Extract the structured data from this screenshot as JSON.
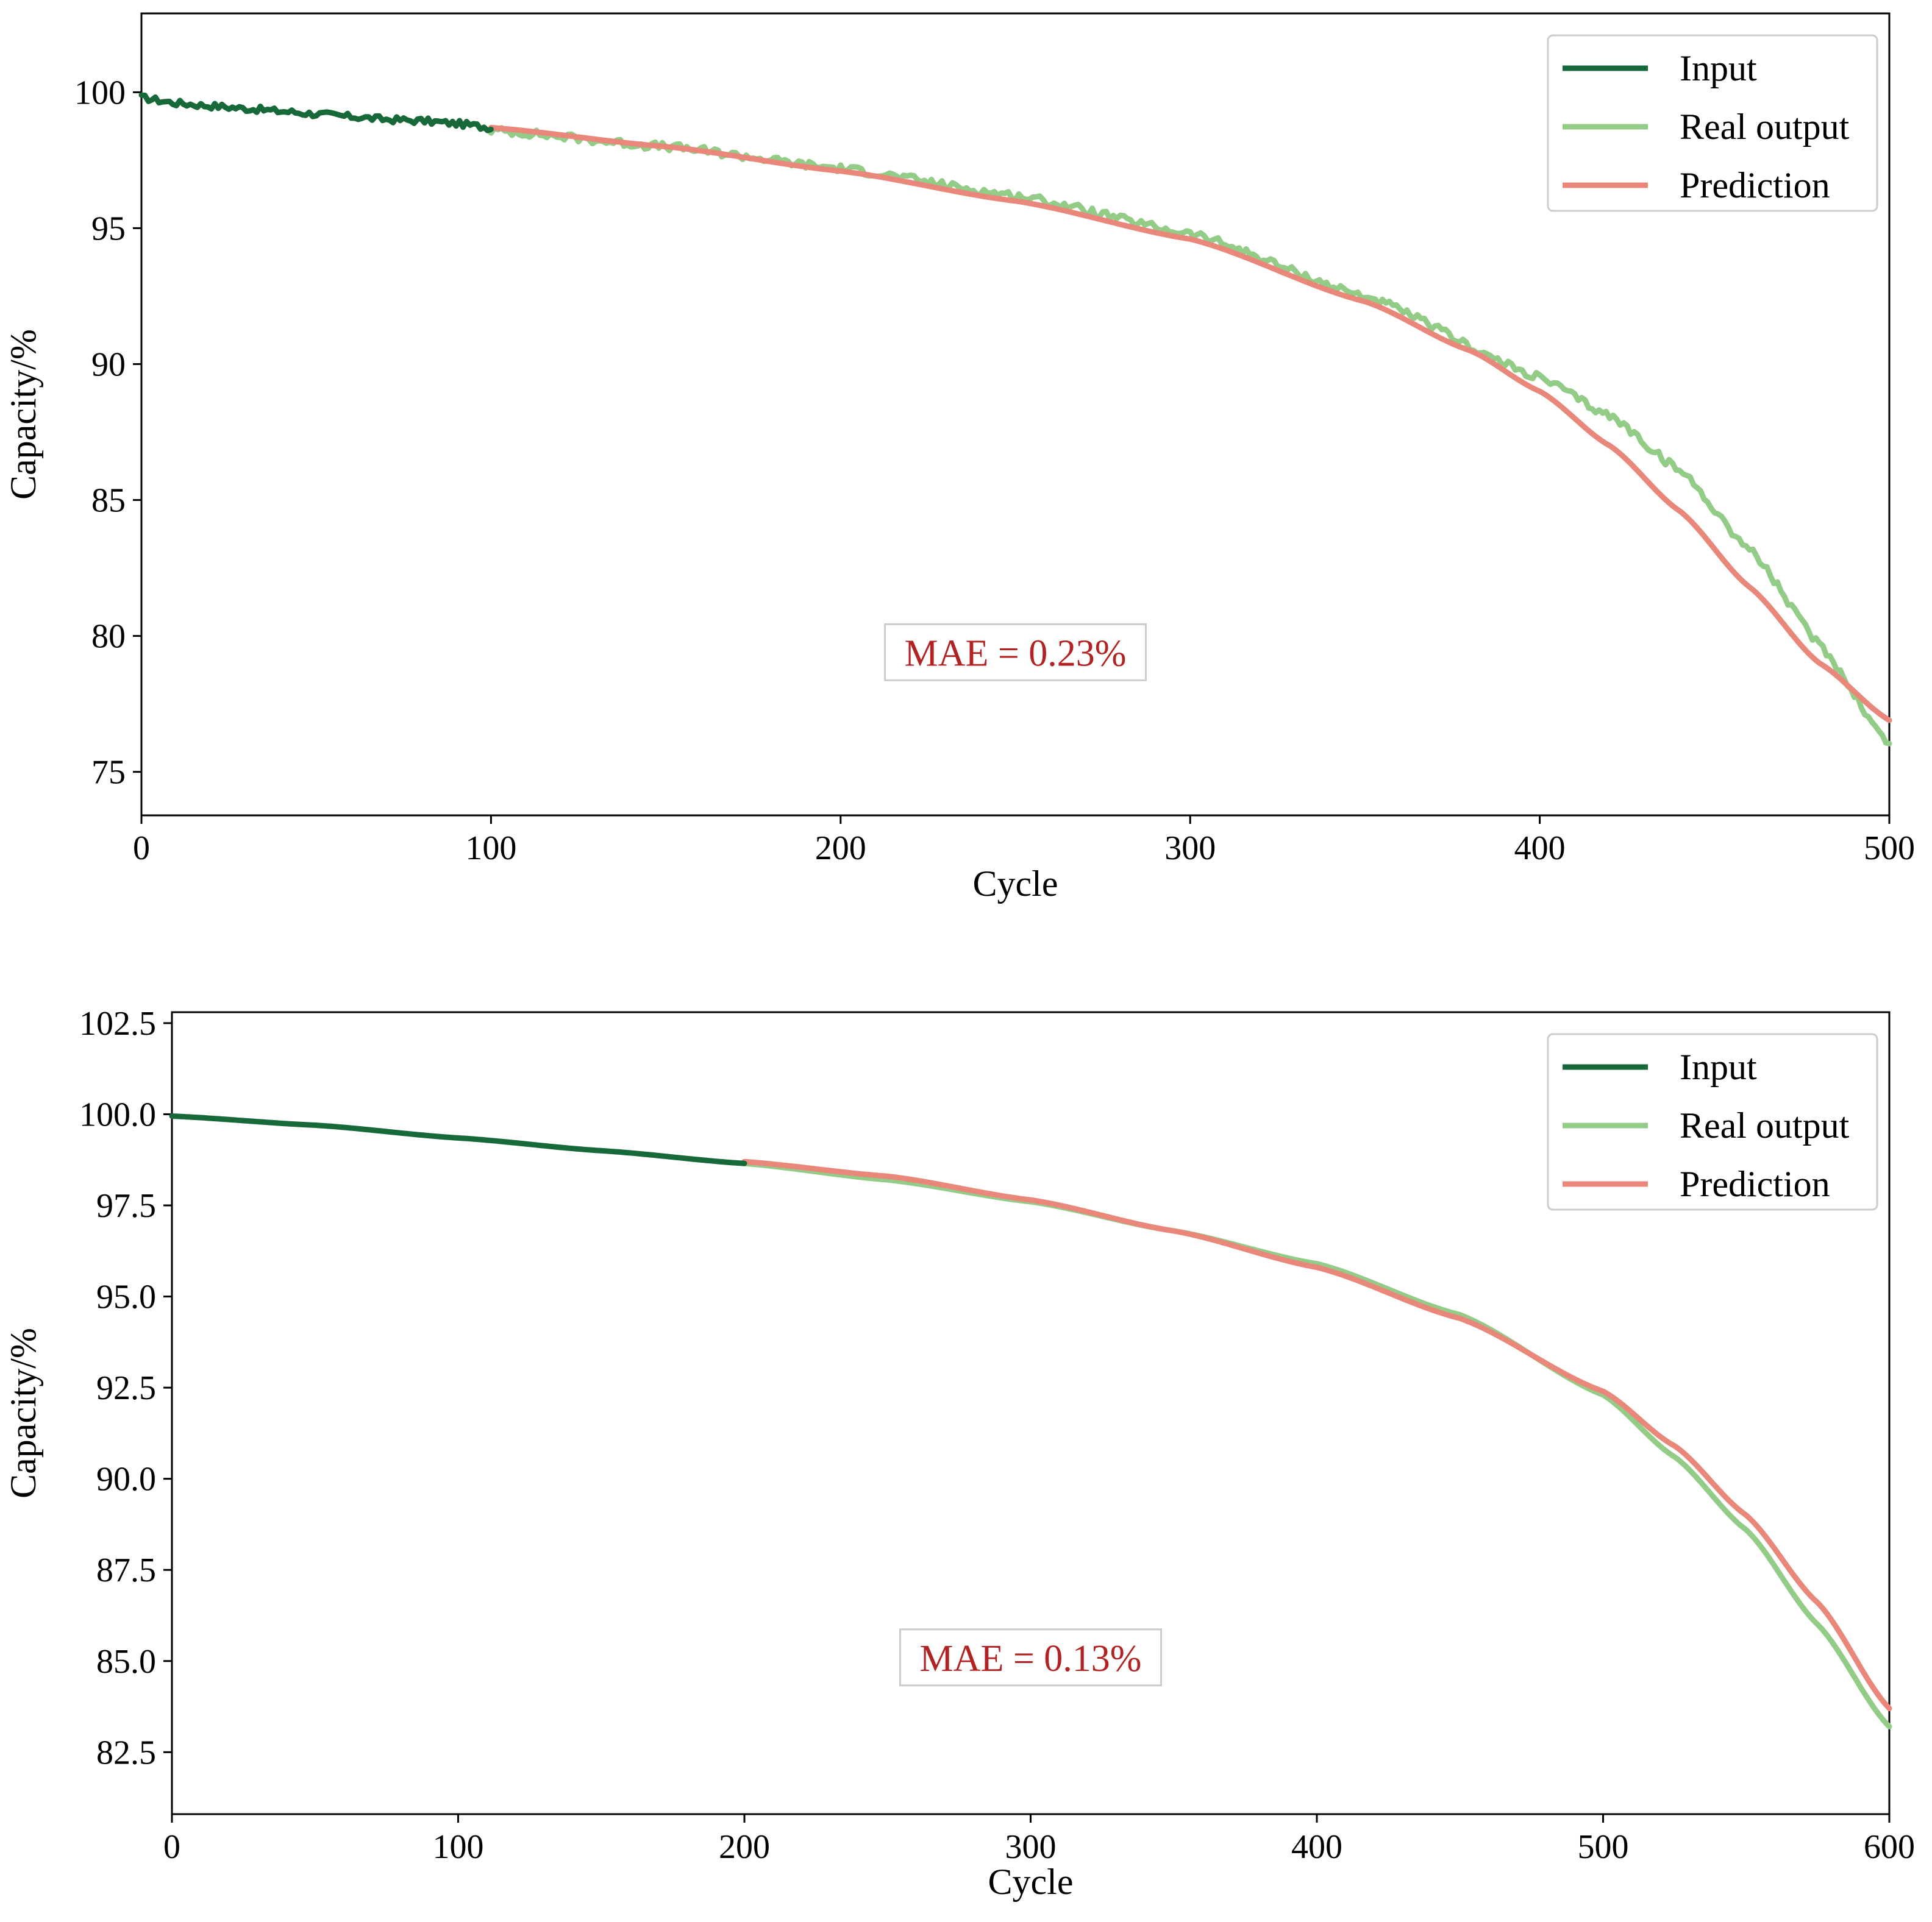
{
  "chart_data": [
    {
      "type": "line",
      "xlabel": "Cycle",
      "ylabel": "Capacity/%",
      "xlim": [
        0,
        500
      ],
      "ylim": [
        73.4,
        102.9
      ],
      "xticks": [
        0,
        100,
        200,
        300,
        400,
        500
      ],
      "xtick_labels": [
        "0",
        "100",
        "200",
        "300",
        "400",
        "500"
      ],
      "yticks": [
        75,
        80,
        85,
        90,
        95,
        100
      ],
      "ytick_labels": [
        "75",
        "80",
        "85",
        "90",
        "95",
        "100"
      ],
      "legend_position": "top-right",
      "annotation": "MAE = 0.23%",
      "annotation_at": [
        250,
        79.4
      ],
      "series": [
        {
          "name": "Input",
          "color": "#17693a",
          "x": [
            0,
            10,
            20,
            30,
            40,
            50,
            60,
            70,
            80,
            90,
            100
          ],
          "y": [
            99.8,
            99.6,
            99.5,
            99.4,
            99.3,
            99.2,
            99.1,
            99.0,
            98.95,
            98.85,
            98.7
          ],
          "noise": 0.12
        },
        {
          "name": "Real output",
          "color": "#93cc86",
          "x": [
            100,
            150,
            200,
            250,
            300,
            350,
            400,
            420,
            440,
            460,
            480,
            500
          ],
          "y": [
            98.6,
            98.0,
            97.2,
            96.2,
            94.8,
            92.5,
            89.5,
            88.1,
            86.1,
            83.2,
            79.7,
            76.0
          ],
          "noise": 0.15
        },
        {
          "name": "Prediction",
          "color": "#e9877a",
          "x": [
            100,
            150,
            200,
            250,
            300,
            350,
            380,
            400,
            420,
            440,
            460,
            480,
            500
          ],
          "y": [
            98.7,
            98.0,
            97.1,
            96.0,
            94.6,
            92.3,
            90.5,
            89.0,
            87.0,
            84.6,
            81.8,
            79.0,
            76.9
          ]
        }
      ]
    },
    {
      "type": "line",
      "xlabel": "Cycle",
      "ylabel": "Capacity/%",
      "xlim": [
        0,
        600
      ],
      "ylim": [
        80.8,
        102.8
      ],
      "xticks": [
        0,
        100,
        200,
        300,
        400,
        500,
        600
      ],
      "xtick_labels": [
        "0",
        "100",
        "200",
        "300",
        "400",
        "500",
        "600"
      ],
      "yticks": [
        82.5,
        85.0,
        87.5,
        90.0,
        92.5,
        95.0,
        97.5,
        100.0,
        102.5
      ],
      "ytick_labels": [
        "82.5",
        "85.0",
        "87.5",
        "90.0",
        "92.5",
        "95.0",
        "97.5",
        "100.0",
        "102.5"
      ],
      "legend_position": "top-right",
      "annotation": "MAE = 0.13%",
      "annotation_at": [
        300,
        85.1
      ],
      "series": [
        {
          "name": "Input",
          "color": "#17693a",
          "x": [
            0,
            50,
            100,
            150,
            200
          ],
          "y": [
            99.95,
            99.7,
            99.35,
            99.0,
            98.65
          ]
        },
        {
          "name": "Real output",
          "color": "#93cc86",
          "x": [
            200,
            250,
            300,
            350,
            400,
            450,
            500,
            525,
            550,
            575,
            600
          ],
          "y": [
            98.65,
            98.2,
            97.6,
            96.8,
            95.9,
            94.5,
            92.3,
            90.6,
            88.6,
            86.0,
            83.2
          ]
        },
        {
          "name": "Prediction",
          "color": "#e9877a",
          "x": [
            200,
            250,
            300,
            350,
            400,
            450,
            500,
            525,
            550,
            575,
            600
          ],
          "y": [
            98.7,
            98.3,
            97.65,
            96.8,
            95.8,
            94.4,
            92.4,
            90.9,
            89.0,
            86.6,
            83.7
          ]
        }
      ]
    }
  ]
}
